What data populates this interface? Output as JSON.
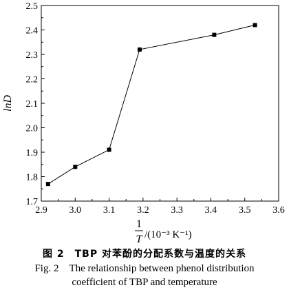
{
  "chart_data": {
    "type": "line",
    "x": [
      2.92,
      3.0,
      3.1,
      3.19,
      3.41,
      3.53
    ],
    "series": [
      {
        "values": [
          1.77,
          1.84,
          1.91,
          2.32,
          2.38,
          2.42
        ]
      }
    ],
    "xlim": [
      2.9,
      3.6
    ],
    "ylim": [
      1.7,
      2.5
    ],
    "x_ticks": [
      "2.9",
      "3.0",
      "3.1",
      "3.2",
      "3.3",
      "3.4",
      "3.5",
      "3.6"
    ],
    "y_ticks": [
      "1.7",
      "1.8",
      "1.9",
      "2.0",
      "2.1",
      "2.2",
      "2.3",
      "2.4",
      "2.5"
    ],
    "ylabel": "lnD",
    "xlabel_numerator": "1",
    "xlabel_denominator": "T",
    "xlabel_unit": "/(10⁻³ K⁻¹)",
    "marker": "square",
    "grid": false,
    "colors": {
      "line": "#000000",
      "marker": "#000000"
    }
  },
  "caption": {
    "chinese": "图 2　TBP 对苯酚的分配系数与温度的关系",
    "english_line1": "Fig. 2　The relationship between phenol distribution",
    "english_line2": "coefficient of TBP and temperature"
  }
}
